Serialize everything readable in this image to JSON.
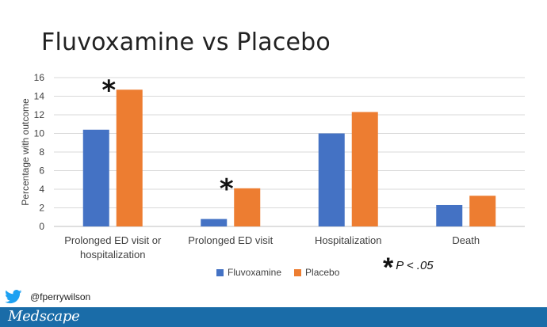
{
  "slide": {
    "title": "Fluvoxamine vs Placebo",
    "twitter_handle": "@fperrywilson",
    "brand": "Medscape",
    "significance_note": {
      "star": "*",
      "text": "P < .05"
    }
  },
  "colors": {
    "fluvoxamine": "#4472c4",
    "placebo": "#ed7d31",
    "gridline": "#d9d9d9",
    "footer": "#1a6ca8",
    "twitter": "#1da1f2"
  },
  "chart_data": {
    "type": "bar",
    "title": "",
    "xlabel": "",
    "ylabel": "Percentage with outcome",
    "ylim": [
      0,
      16
    ],
    "yticks": [
      0,
      2,
      4,
      6,
      8,
      10,
      12,
      14,
      16
    ],
    "grid": true,
    "legend_position": "bottom",
    "categories": [
      [
        "Prolonged ED visit or",
        "hospitalization"
      ],
      [
        "Prolonged ED visit"
      ],
      [
        "Hospitalization"
      ],
      [
        "Death"
      ]
    ],
    "series": [
      {
        "name": "Fluvoxamine",
        "values": [
          10.4,
          0.8,
          10.0,
          2.3
        ]
      },
      {
        "name": "Placebo",
        "values": [
          14.7,
          4.1,
          12.3,
          3.3
        ]
      }
    ],
    "annotations": [
      {
        "text": "*",
        "category_index": 0
      },
      {
        "text": "*",
        "category_index": 1
      }
    ]
  }
}
